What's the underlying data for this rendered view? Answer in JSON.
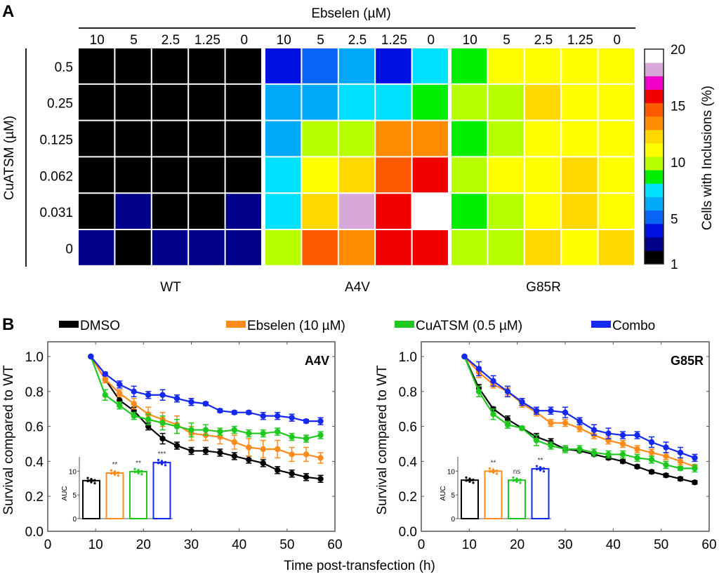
{
  "panel_labels": [
    "A",
    "B"
  ],
  "chart_data": [
    {
      "type": "heatmap",
      "panel": "A",
      "title": "",
      "col_header": "Ebselen (µM)",
      "row_header": "CuATSM (µM)",
      "columns": [
        "10",
        "5",
        "2.5",
        "1.25",
        "0"
      ],
      "rows": [
        "0.5",
        "0.25",
        "0.125",
        "0.062",
        "0.031",
        "0"
      ],
      "groups": [
        {
          "name": "WT",
          "values": [
            [
              1.5,
              1.5,
              1.5,
              1.5,
              1.5
            ],
            [
              1.5,
              1.5,
              1.5,
              1.5,
              1.5
            ],
            [
              1.5,
              1.5,
              1.5,
              1.5,
              1.5
            ],
            [
              1.5,
              1.5,
              1.5,
              1.5,
              1.5
            ],
            [
              1.5,
              2.8,
              1.5,
              1.5,
              2.8
            ],
            [
              2.8,
              1.5,
              2.8,
              2.8,
              2.8
            ]
          ]
        },
        {
          "name": "A4V",
          "values": [
            [
              3.9,
              5.2,
              6.4,
              3.9,
              7.5
            ],
            [
              6.4,
              6.4,
              7.5,
              7.5,
              8.7
            ],
            [
              6.4,
              9.9,
              9.9,
              13.5,
              13.5
            ],
            [
              7.5,
              11.1,
              12.3,
              14.7,
              15.9
            ],
            [
              7.5,
              12.3,
              18.2,
              15.9,
              19.4
            ],
            [
              9.9,
              14.7,
              13.5,
              15.9,
              15.9
            ]
          ]
        },
        {
          "name": "G85R",
          "values": [
            [
              8.7,
              11.1,
              11.1,
              11.1,
              11.1
            ],
            [
              9.9,
              9.9,
              12.3,
              11.1,
              11.1
            ],
            [
              8.7,
              9.9,
              11.1,
              11.1,
              11.1
            ],
            [
              9.9,
              11.1,
              11.1,
              12.3,
              11.1
            ],
            [
              8.7,
              9.9,
              11.1,
              12.3,
              11.6
            ],
            [
              9.9,
              9.9,
              12.3,
              11.1,
              12.3
            ]
          ]
        }
      ],
      "colorbar": {
        "label": "Cells with Inclusions (%)",
        "min": 1,
        "max": 20,
        "ticks": [
          "20",
          "15",
          "10",
          "5",
          "1"
        ],
        "tick_values": [
          20,
          15,
          10,
          5,
          1
        ],
        "colors": [
          "#000000",
          "#00008b",
          "#0010e0",
          "#0a64f5",
          "#00a8f8",
          "#00e0ff",
          "#00ee00",
          "#b8ff00",
          "#ffff00",
          "#ffd800",
          "#ff8c00",
          "#ff5a00",
          "#f20000",
          "#f000c8",
          "#d8a8d8",
          "#ffffff"
        ]
      }
    },
    {
      "type": "line",
      "panel": "B",
      "strain": "A4V",
      "xlabel": "Time post-transfection (h)",
      "ylabel": "Survival compared to WT",
      "xlim": [
        0,
        60
      ],
      "ylim": [
        0,
        1.05
      ],
      "xticks": [
        "0",
        "10",
        "20",
        "30",
        "40",
        "50",
        "60"
      ],
      "yticks": [
        "0.0",
        "0.2",
        "0.4",
        "0.6",
        "0.8",
        "1.0"
      ],
      "x": [
        9,
        12,
        15,
        18,
        21,
        24,
        27,
        30,
        33,
        36,
        39,
        42,
        45,
        48,
        51,
        54,
        57
      ],
      "series": [
        {
          "name": "DMSO",
          "color": "#000000",
          "values": [
            1.0,
            0.87,
            0.75,
            0.69,
            0.6,
            0.53,
            0.49,
            0.46,
            0.46,
            0.45,
            0.43,
            0.41,
            0.39,
            0.35,
            0.33,
            0.31,
            0.3
          ],
          "errors": [
            0,
            0.02,
            0.02,
            0.02,
            0.02,
            0.03,
            0.02,
            0.02,
            0.02,
            0.02,
            0.02,
            0.02,
            0.02,
            0.02,
            0.02,
            0.02,
            0.02
          ]
        },
        {
          "name": "Ebselen (10 µM)",
          "color": "#ff8c1a",
          "values": [
            1.0,
            0.87,
            0.79,
            0.73,
            0.67,
            0.64,
            0.61,
            0.56,
            0.55,
            0.54,
            0.51,
            0.48,
            0.47,
            0.47,
            0.44,
            0.44,
            0.42
          ],
          "errors": [
            0,
            0.02,
            0.02,
            0.03,
            0.04,
            0.04,
            0.05,
            0.04,
            0.03,
            0.04,
            0.04,
            0.05,
            0.05,
            0.05,
            0.04,
            0.04,
            0.03
          ]
        },
        {
          "name": "CuATSM (0.5 µM)",
          "color": "#1ec81e",
          "values": [
            1.0,
            0.78,
            0.72,
            0.66,
            0.64,
            0.62,
            0.6,
            0.58,
            0.58,
            0.57,
            0.58,
            0.56,
            0.56,
            0.57,
            0.54,
            0.53,
            0.55
          ],
          "errors": [
            0,
            0.03,
            0.02,
            0.02,
            0.03,
            0.04,
            0.04,
            0.04,
            0.03,
            0.02,
            0.02,
            0.02,
            0.02,
            0.02,
            0.02,
            0.02,
            0.02
          ]
        },
        {
          "name": "Combo",
          "color": "#1428f0",
          "values": [
            1.0,
            0.9,
            0.84,
            0.8,
            0.78,
            0.78,
            0.76,
            0.74,
            0.73,
            0.69,
            0.68,
            0.68,
            0.66,
            0.66,
            0.65,
            0.63,
            0.63
          ],
          "errors": [
            0,
            0.01,
            0.02,
            0.03,
            0.02,
            0.03,
            0.02,
            0.02,
            0.01,
            0.01,
            0.01,
            0.01,
            0.02,
            0.02,
            0.02,
            0.01,
            0.02
          ]
        }
      ],
      "annotation": "A4V",
      "inset": {
        "type": "bar",
        "ylabel": "AUC",
        "ylim": [
          0,
          13
        ],
        "yticks": [
          "0",
          "5",
          "10"
        ],
        "categories": [
          "DMSO",
          "Ebselen (10 µM)",
          "CuATSM (0.5 µM)",
          "Combo"
        ],
        "values": [
          8.0,
          9.6,
          9.9,
          11.8
        ],
        "significance": [
          "",
          "**",
          "**",
          "***"
        ]
      }
    },
    {
      "type": "line",
      "panel": "B",
      "strain": "G85R",
      "xlabel": "Time post-transfection (h)",
      "ylabel": "Survival compared to WT",
      "xlim": [
        0,
        60
      ],
      "ylim": [
        0,
        1.05
      ],
      "xticks": [
        "0",
        "10",
        "20",
        "30",
        "40",
        "50",
        "60"
      ],
      "yticks": [
        "0.0",
        "0.2",
        "0.4",
        "0.6",
        "0.8",
        "1.0"
      ],
      "x": [
        9,
        12,
        15,
        18,
        21,
        24,
        27,
        30,
        33,
        36,
        39,
        42,
        45,
        48,
        51,
        54,
        57
      ],
      "series": [
        {
          "name": "DMSO",
          "color": "#000000",
          "values": [
            1.0,
            0.82,
            0.7,
            0.64,
            0.59,
            0.54,
            0.51,
            0.47,
            0.46,
            0.44,
            0.42,
            0.4,
            0.37,
            0.34,
            0.32,
            0.3,
            0.28
          ],
          "errors": [
            0,
            0.02,
            0.01,
            0.02,
            0.01,
            0.02,
            0.02,
            0.01,
            0.01,
            0.01,
            0.01,
            0.01,
            0.01,
            0.01,
            0.01,
            0.01,
            0.01
          ]
        },
        {
          "name": "Ebselen (10 µM)",
          "color": "#ff8c1a",
          "values": [
            1.0,
            0.91,
            0.84,
            0.8,
            0.73,
            0.68,
            0.62,
            0.62,
            0.59,
            0.55,
            0.52,
            0.5,
            0.47,
            0.45,
            0.43,
            0.4,
            0.37
          ],
          "errors": [
            0,
            0.03,
            0.02,
            0.02,
            0.02,
            0.02,
            0.02,
            0.02,
            0.02,
            0.02,
            0.02,
            0.02,
            0.02,
            0.02,
            0.02,
            0.02,
            0.01
          ]
        },
        {
          "name": "CuATSM (0.5 µM)",
          "color": "#1ec81e",
          "values": [
            1.0,
            0.8,
            0.67,
            0.61,
            0.59,
            0.52,
            0.49,
            0.47,
            0.47,
            0.45,
            0.44,
            0.44,
            0.42,
            0.41,
            0.38,
            0.36,
            0.36
          ],
          "errors": [
            0,
            0.03,
            0.03,
            0.02,
            0.01,
            0.03,
            0.02,
            0.02,
            0.02,
            0.02,
            0.02,
            0.02,
            0.02,
            0.02,
            0.02,
            0.01,
            0.02
          ]
        },
        {
          "name": "Combo",
          "color": "#1428f0",
          "values": [
            1.0,
            0.93,
            0.86,
            0.8,
            0.74,
            0.69,
            0.69,
            0.68,
            0.63,
            0.58,
            0.56,
            0.55,
            0.55,
            0.51,
            0.48,
            0.45,
            0.42
          ],
          "errors": [
            0,
            0.04,
            0.03,
            0.03,
            0.02,
            0.02,
            0.02,
            0.03,
            0.02,
            0.03,
            0.03,
            0.02,
            0.02,
            0.03,
            0.03,
            0.03,
            0.02
          ]
        }
      ],
      "annotation": "G85R",
      "inset": {
        "type": "bar",
        "ylabel": "AUC",
        "ylim": [
          0,
          13
        ],
        "yticks": [
          "0",
          "5",
          "10"
        ],
        "categories": [
          "DMSO",
          "Ebselen (10 µM)",
          "CuATSM (0.5 µM)",
          "Combo"
        ],
        "values": [
          8.1,
          10.0,
          8.1,
          10.5
        ],
        "significance": [
          "",
          "**",
          "ns",
          "**"
        ]
      }
    }
  ],
  "legend": [
    {
      "label": "DMSO",
      "color": "#000000"
    },
    {
      "label": "Ebselen (10 µM)",
      "color": "#ff8c1a"
    },
    {
      "label": "CuATSM (0.5 µM)",
      "color": "#1ec81e"
    },
    {
      "label": "Combo",
      "color": "#1428f0"
    }
  ]
}
